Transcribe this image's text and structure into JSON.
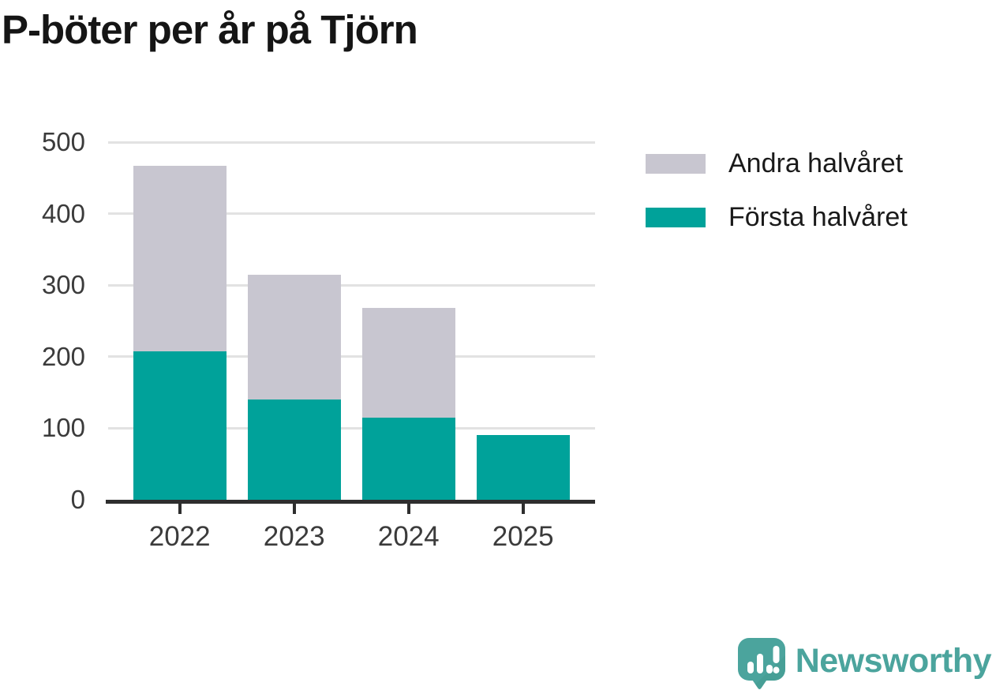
{
  "title": "P-böter per år på Tjörn",
  "colors": {
    "first_half_teal": "#00A29A",
    "second_half_gray": "#C8C6D0",
    "axis": "#2e2e2e",
    "gridline": "#e2e2e2",
    "brand_teal": "#4BA49D",
    "text_dark": "#151515",
    "axis_label": "#3b3b3b"
  },
  "legend": {
    "items": [
      {
        "label": "Andra halvåret",
        "color": "#C8C6D0"
      },
      {
        "label": "Första halvåret",
        "color": "#00A29A"
      }
    ]
  },
  "branding": {
    "logo_text": "Newsworthy",
    "logo_icon": "newsworthy-speech-bubble-bar-chart-icon"
  },
  "chart_data": {
    "type": "bar",
    "stacked": true,
    "title": "P-böter per år på Tjörn",
    "categories": [
      "2022",
      "2023",
      "2024",
      "2025"
    ],
    "series": [
      {
        "name": "Första halvåret",
        "color": "#00A29A",
        "values": [
          208,
          140,
          115,
          90
        ]
      },
      {
        "name": "Andra halvåret",
        "color": "#C8C6D0",
        "values": [
          259,
          175,
          153,
          0
        ]
      }
    ],
    "stack_totals": [
      467,
      315,
      268,
      90
    ],
    "xlabel": "",
    "ylabel": "",
    "ylim": [
      0,
      500
    ],
    "yticks": [
      0,
      100,
      200,
      300,
      400,
      500
    ],
    "grid": true,
    "legend_position": "right"
  }
}
